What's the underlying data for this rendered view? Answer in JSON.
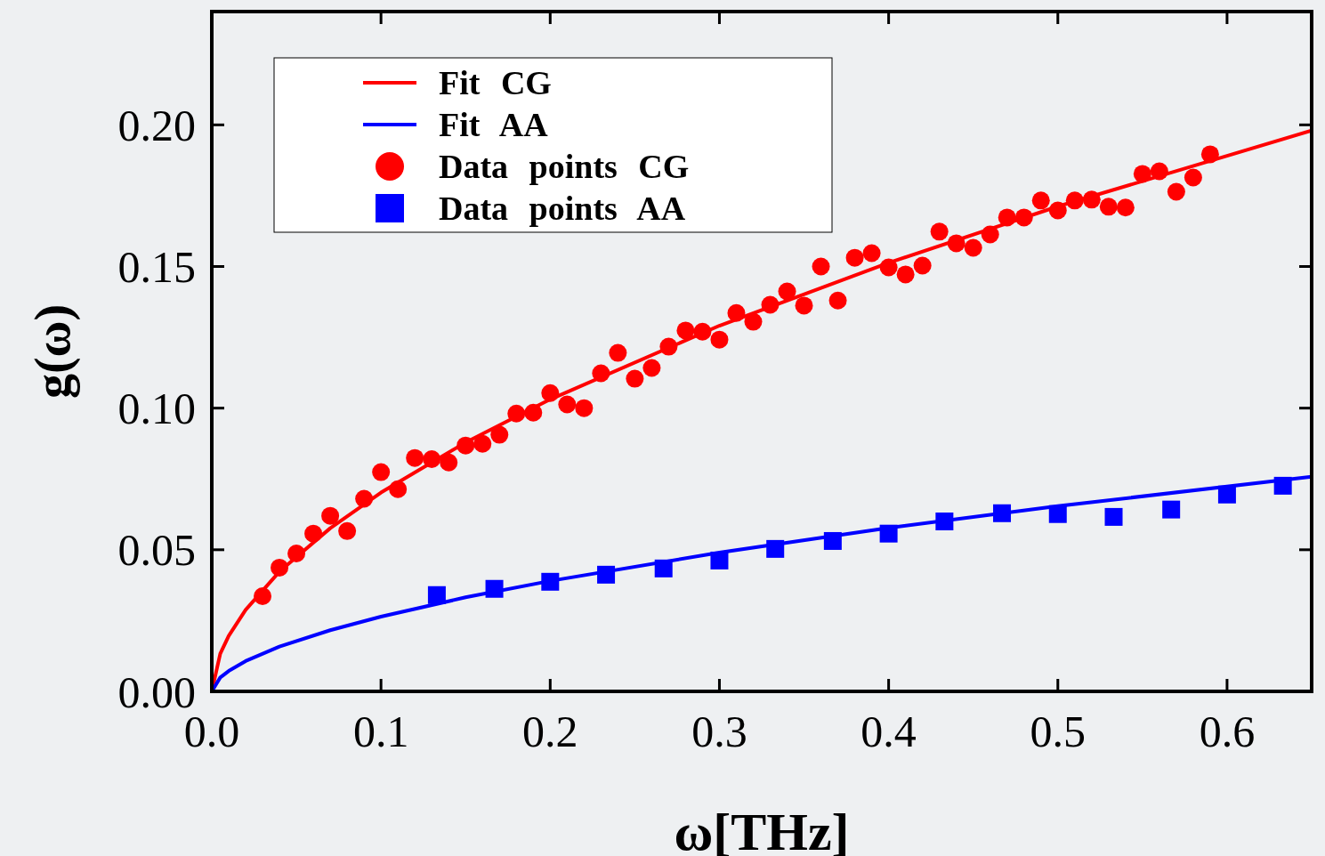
{
  "chart_data": {
    "type": "scatter",
    "xlabel": "ω[THz]",
    "ylabel": "g(ω)",
    "xlim": [
      0,
      0.65
    ],
    "ylim": [
      0,
      0.24
    ],
    "xticks": [
      {
        "value": 0,
        "label": "0.0"
      },
      0.1,
      0.2,
      0.3,
      0.4,
      0.5,
      0.6
    ],
    "yticks": [
      {
        "value": 0,
        "label": "0.00"
      },
      0.05,
      {
        "value": 0.1,
        "label": "0.10"
      },
      0.15,
      {
        "value": 0.2,
        "label": "0.20"
      }
    ],
    "grid": false,
    "legend": "top left",
    "series": [
      {
        "name": "Fit CG",
        "type": "line",
        "color": "#ff0000",
        "line_style": "solid",
        "x": [
          0,
          0.005,
          0.01,
          0.02,
          0.04,
          0.07,
          0.1,
          0.15,
          0.2,
          0.3,
          0.4,
          0.5,
          0.65
        ],
        "values": [
          0,
          0.0133,
          0.0196,
          0.0288,
          0.0423,
          0.0576,
          0.0702,
          0.0879,
          0.1031,
          0.1291,
          0.1513,
          0.1712,
          0.198
        ]
      },
      {
        "name": "Fit AA",
        "type": "line",
        "color": "#0000ff",
        "line_style": "solid",
        "x": [
          0,
          0.005,
          0.01,
          0.02,
          0.04,
          0.07,
          0.1,
          0.15,
          0.2,
          0.3,
          0.4,
          0.5,
          0.65
        ],
        "values": [
          0,
          0.0049,
          0.0072,
          0.0107,
          0.0158,
          0.0216,
          0.0264,
          0.0332,
          0.039,
          0.049,
          0.0577,
          0.0654,
          0.0758
        ]
      },
      {
        "name": "Data points CG",
        "marker": "circle",
        "color": "#ff0000",
        "x": [
          0.03,
          0.04,
          0.05,
          0.06,
          0.07,
          0.08,
          0.09,
          0.1,
          0.11,
          0.12,
          0.13,
          0.14,
          0.15,
          0.16,
          0.17,
          0.18,
          0.19,
          0.2,
          0.21,
          0.22,
          0.23,
          0.24,
          0.25,
          0.26,
          0.27,
          0.28,
          0.29,
          0.3,
          0.31,
          0.32,
          0.33,
          0.34,
          0.35,
          0.36,
          0.37,
          0.38,
          0.39,
          0.4,
          0.41,
          0.42,
          0.43,
          0.44,
          0.45,
          0.46,
          0.47,
          0.48,
          0.49,
          0.5,
          0.51,
          0.52,
          0.53,
          0.54,
          0.55,
          0.56,
          0.57,
          0.58,
          0.59
        ],
        "values": [
          0.0336,
          0.0437,
          0.0487,
          0.0557,
          0.062,
          0.0566,
          0.068,
          0.0774,
          0.0714,
          0.0824,
          0.082,
          0.0808,
          0.0868,
          0.0874,
          0.0906,
          0.0981,
          0.0984,
          0.1053,
          0.1013,
          0.1,
          0.1123,
          0.1195,
          0.1104,
          0.1142,
          0.1217,
          0.1274,
          0.127,
          0.1242,
          0.1336,
          0.1305,
          0.1365,
          0.1412,
          0.1362,
          0.15,
          0.138,
          0.1531,
          0.1547,
          0.1497,
          0.1472,
          0.1503,
          0.1623,
          0.1582,
          0.1566,
          0.1613,
          0.1673,
          0.1673,
          0.1733,
          0.1698,
          0.1733,
          0.1736,
          0.1711,
          0.1708,
          0.1827,
          0.1836,
          0.1764,
          0.1814,
          0.1896
        ]
      },
      {
        "name": "Data points AA",
        "marker": "square",
        "color": "#0000ff",
        "x": [
          0.133,
          0.167,
          0.2,
          0.233,
          0.267,
          0.3,
          0.333,
          0.367,
          0.4,
          0.433,
          0.467,
          0.5,
          0.533,
          0.567,
          0.6,
          0.633
        ],
        "values": [
          0.034,
          0.0362,
          0.0387,
          0.0412,
          0.0434,
          0.0462,
          0.0503,
          0.0531,
          0.0557,
          0.06,
          0.0629,
          0.0626,
          0.0616,
          0.0642,
          0.0695,
          0.0726
        ]
      }
    ]
  }
}
